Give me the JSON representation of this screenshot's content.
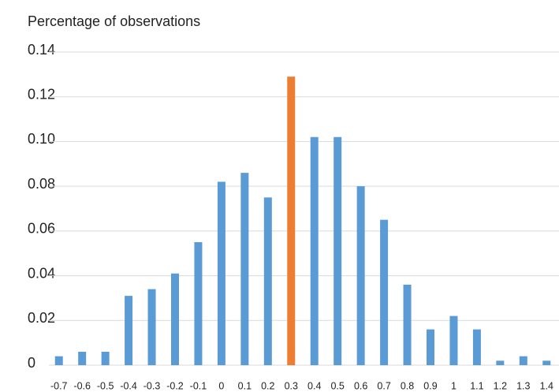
{
  "chart_data": {
    "type": "bar",
    "title": "Percentage of observations",
    "categories": [
      "-0.7",
      "-0.6",
      "-0.5",
      "-0.4",
      "-0.3",
      "-0.2",
      "-0.1",
      "0",
      "0.1",
      "0.2",
      "0.3",
      "0.4",
      "0.5",
      "0.6",
      "0.7",
      "0.8",
      "0.9",
      "1",
      "1.1",
      "1.2",
      "1.3",
      "1.4"
    ],
    "values": [
      0.004,
      0.006,
      0.006,
      0.031,
      0.034,
      0.041,
      0.055,
      0.082,
      0.086,
      0.075,
      0.129,
      0.102,
      0.102,
      0.08,
      0.065,
      0.036,
      0.016,
      0.022,
      0.016,
      0.002,
      0.004,
      0.002
    ],
    "colors": [
      "#5b9bd5",
      "#5b9bd5",
      "#5b9bd5",
      "#5b9bd5",
      "#5b9bd5",
      "#5b9bd5",
      "#5b9bd5",
      "#5b9bd5",
      "#5b9bd5",
      "#5b9bd5",
      "#ed7d31",
      "#5b9bd5",
      "#5b9bd5",
      "#5b9bd5",
      "#5b9bd5",
      "#5b9bd5",
      "#5b9bd5",
      "#5b9bd5",
      "#5b9bd5",
      "#5b9bd5",
      "#5b9bd5",
      "#5b9bd5"
    ],
    "ylim": [
      0,
      0.14
    ],
    "yticks": [
      0,
      0.02,
      0.04,
      0.06,
      0.08,
      {
        "value": 0.1,
        "label": "0.10"
      },
      0.12,
      0.14
    ],
    "grid": true
  }
}
